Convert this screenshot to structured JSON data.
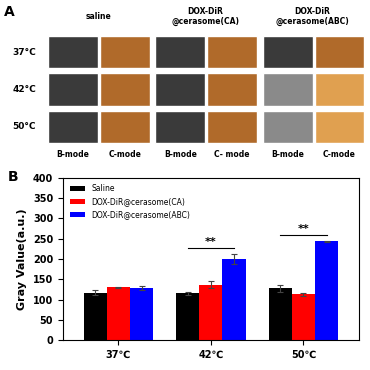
{
  "panel_a": {
    "label": "A",
    "columns": [
      "saline",
      "DOX-DiR\n@cerasome(CA)",
      "DOX-DiR\n@cerasome(ABC)"
    ],
    "rows": [
      "37°C",
      "42°C",
      "50°C"
    ],
    "mode_labels": [
      [
        "B-mode",
        "C-mode"
      ],
      [
        "B-mode",
        "C- mode"
      ],
      [
        "B-mode",
        "C-mode"
      ]
    ]
  },
  "chart_data": {
    "type": "bar",
    "panel_label": "B",
    "y_label": "Gray Value(a.u.)",
    "categories": [
      "37℃",
      "42℃",
      "50℃"
    ],
    "series": [
      {
        "name": "Saline",
        "color": "#000000",
        "values": [
          117,
          116,
          128
        ],
        "errors": [
          6,
          4,
          8
        ]
      },
      {
        "name": "DOX-DiR@cerasome(CA)",
        "color": "#ff0000",
        "values": [
          130,
          137,
          113
        ],
        "errors": [
          2,
          8,
          3
        ]
      },
      {
        "name": "DOX-DiR@cerasome(ABC)",
        "color": "#0000ff",
        "values": [
          128,
          200,
          243
        ],
        "errors": [
          5,
          12,
          2
        ]
      }
    ],
    "ylim": [
      0,
      400
    ],
    "yticks": [
      0,
      50,
      100,
      150,
      200,
      250,
      300,
      350,
      400
    ],
    "legend": "upper left",
    "annotations": [
      {
        "text": "**",
        "category": "42℃",
        "from": "Saline",
        "to": "DOX-DiR@cerasome(ABC)"
      },
      {
        "text": "**",
        "category": "50℃",
        "from": "Saline",
        "to": "DOX-DiR@cerasome(ABC)"
      }
    ]
  }
}
